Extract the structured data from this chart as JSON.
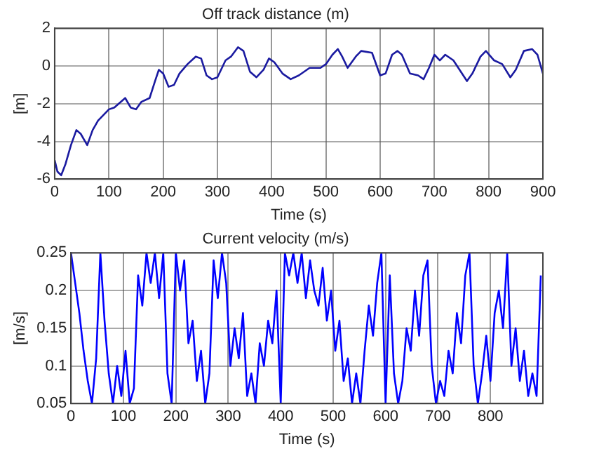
{
  "chart_data": [
    {
      "type": "line",
      "title": "Off track distance (m)",
      "xlabel": "Time (s)",
      "ylabel": "[m]",
      "xlim": [
        0,
        900
      ],
      "xticks": [
        0,
        100,
        200,
        300,
        400,
        500,
        600,
        700,
        800,
        900
      ],
      "ylim": [
        -6,
        2
      ],
      "yticks": [
        -6,
        -4,
        -2,
        0,
        2
      ],
      "grid": true,
      "legend": false,
      "marker": "none",
      "line_style": "solid",
      "series": [
        {
          "color": "#1a1aa0",
          "x": [
            0,
            5,
            12,
            20,
            30,
            40,
            48,
            60,
            70,
            80,
            100,
            110,
            130,
            140,
            150,
            160,
            175,
            185,
            192,
            200,
            210,
            220,
            230,
            245,
            260,
            270,
            280,
            290,
            300,
            315,
            325,
            338,
            348,
            360,
            372,
            385,
            395,
            405,
            420,
            435,
            450,
            470,
            480,
            490,
            500,
            512,
            522,
            530,
            540,
            555,
            565,
            585,
            600,
            610,
            622,
            632,
            640,
            655,
            670,
            680,
            690,
            700,
            710,
            720,
            735,
            760,
            770,
            785,
            795,
            810,
            825,
            840,
            850,
            865,
            880,
            890,
            900
          ],
          "values": [
            -5,
            -5.6,
            -5.8,
            -5.2,
            -4.2,
            -3.4,
            -3.6,
            -4.2,
            -3.4,
            -2.9,
            -2.3,
            -2.2,
            -1.7,
            -2.2,
            -2.3,
            -1.9,
            -1.7,
            -0.8,
            -0.2,
            -0.4,
            -1.1,
            -1,
            -0.4,
            0.1,
            0.5,
            0.4,
            -0.5,
            -0.7,
            -0.6,
            0.3,
            0.5,
            1,
            0.8,
            -0.3,
            -0.6,
            -0.2,
            0.4,
            0.2,
            -0.4,
            -0.7,
            -0.5,
            -0.1,
            -0.1,
            -0.1,
            0.1,
            0.6,
            0.9,
            0.5,
            -0.1,
            0.5,
            0.8,
            0.7,
            -0.5,
            -0.4,
            0.6,
            0.8,
            0.6,
            -0.4,
            -0.5,
            -0.7,
            -0.1,
            0.6,
            0.3,
            0.6,
            0.3,
            -0.8,
            -0.4,
            0.5,
            0.8,
            0.3,
            0.1,
            -0.6,
            -0.2,
            0.8,
            0.9,
            0.6,
            -0.4
          ]
        }
      ]
    },
    {
      "type": "line",
      "title": "Current velocity (m/s)",
      "xlabel": "Time (s)",
      "ylabel": "[m/s]",
      "xlim": [
        0,
        900
      ],
      "xticks": [
        0,
        100,
        200,
        300,
        400,
        500,
        600,
        700,
        800
      ],
      "ylim": [
        0.05,
        0.25
      ],
      "yticks": [
        0.05,
        0.1,
        0.15,
        0.2,
        0.25
      ],
      "grid": true,
      "legend": false,
      "marker": "none",
      "line_style": "solid",
      "series": [
        {
          "color": "#0000ff",
          "x": [
            0,
            8,
            16,
            24,
            32,
            40,
            48,
            56,
            64,
            72,
            80,
            88,
            96,
            104,
            112,
            120,
            128,
            136,
            144,
            152,
            160,
            168,
            176,
            184,
            192,
            200,
            208,
            216,
            224,
            232,
            240,
            248,
            256,
            264,
            272,
            280,
            288,
            296,
            304,
            312,
            320,
            328,
            336,
            344,
            352,
            360,
            368,
            376,
            384,
            392,
            400,
            408,
            416,
            424,
            432,
            440,
            448,
            456,
            464,
            472,
            480,
            488,
            496,
            504,
            512,
            520,
            528,
            536,
            544,
            552,
            560,
            568,
            576,
            584,
            592,
            600,
            608,
            616,
            624,
            632,
            640,
            648,
            656,
            664,
            672,
            680,
            688,
            696,
            704,
            712,
            720,
            728,
            736,
            744,
            752,
            760,
            768,
            776,
            784,
            792,
            800,
            808,
            816,
            824,
            832,
            840,
            848,
            856,
            864,
            872,
            880,
            888,
            896
          ],
          "values": [
            0.25,
            0.21,
            0.17,
            0.12,
            0.08,
            0.05,
            0.11,
            0.25,
            0.16,
            0.09,
            0.05,
            0.1,
            0.06,
            0.12,
            0.05,
            0.07,
            0.22,
            0.18,
            0.25,
            0.21,
            0.25,
            0.19,
            0.25,
            0.09,
            0.05,
            0.25,
            0.2,
            0.24,
            0.13,
            0.16,
            0.08,
            0.12,
            0.05,
            0.09,
            0.24,
            0.19,
            0.25,
            0.21,
            0.1,
            0.15,
            0.11,
            0.17,
            0.06,
            0.09,
            0.05,
            0.13,
            0.1,
            0.16,
            0.13,
            0.2,
            0.05,
            0.25,
            0.22,
            0.25,
            0.21,
            0.25,
            0.19,
            0.24,
            0.2,
            0.18,
            0.23,
            0.16,
            0.2,
            0.12,
            0.16,
            0.08,
            0.11,
            0.05,
            0.09,
            0.05,
            0.12,
            0.18,
            0.14,
            0.21,
            0.25,
            0.05,
            0.22,
            0.09,
            0.05,
            0.08,
            0.15,
            0.12,
            0.2,
            0.14,
            0.22,
            0.24,
            0.1,
            0.05,
            0.08,
            0.06,
            0.12,
            0.09,
            0.17,
            0.13,
            0.22,
            0.25,
            0.1,
            0.05,
            0.09,
            0.14,
            0.08,
            0.17,
            0.2,
            0.15,
            0.25,
            0.1,
            0.15,
            0.08,
            0.12,
            0.06,
            0.09,
            0.06,
            0.22
          ]
        }
      ]
    }
  ]
}
